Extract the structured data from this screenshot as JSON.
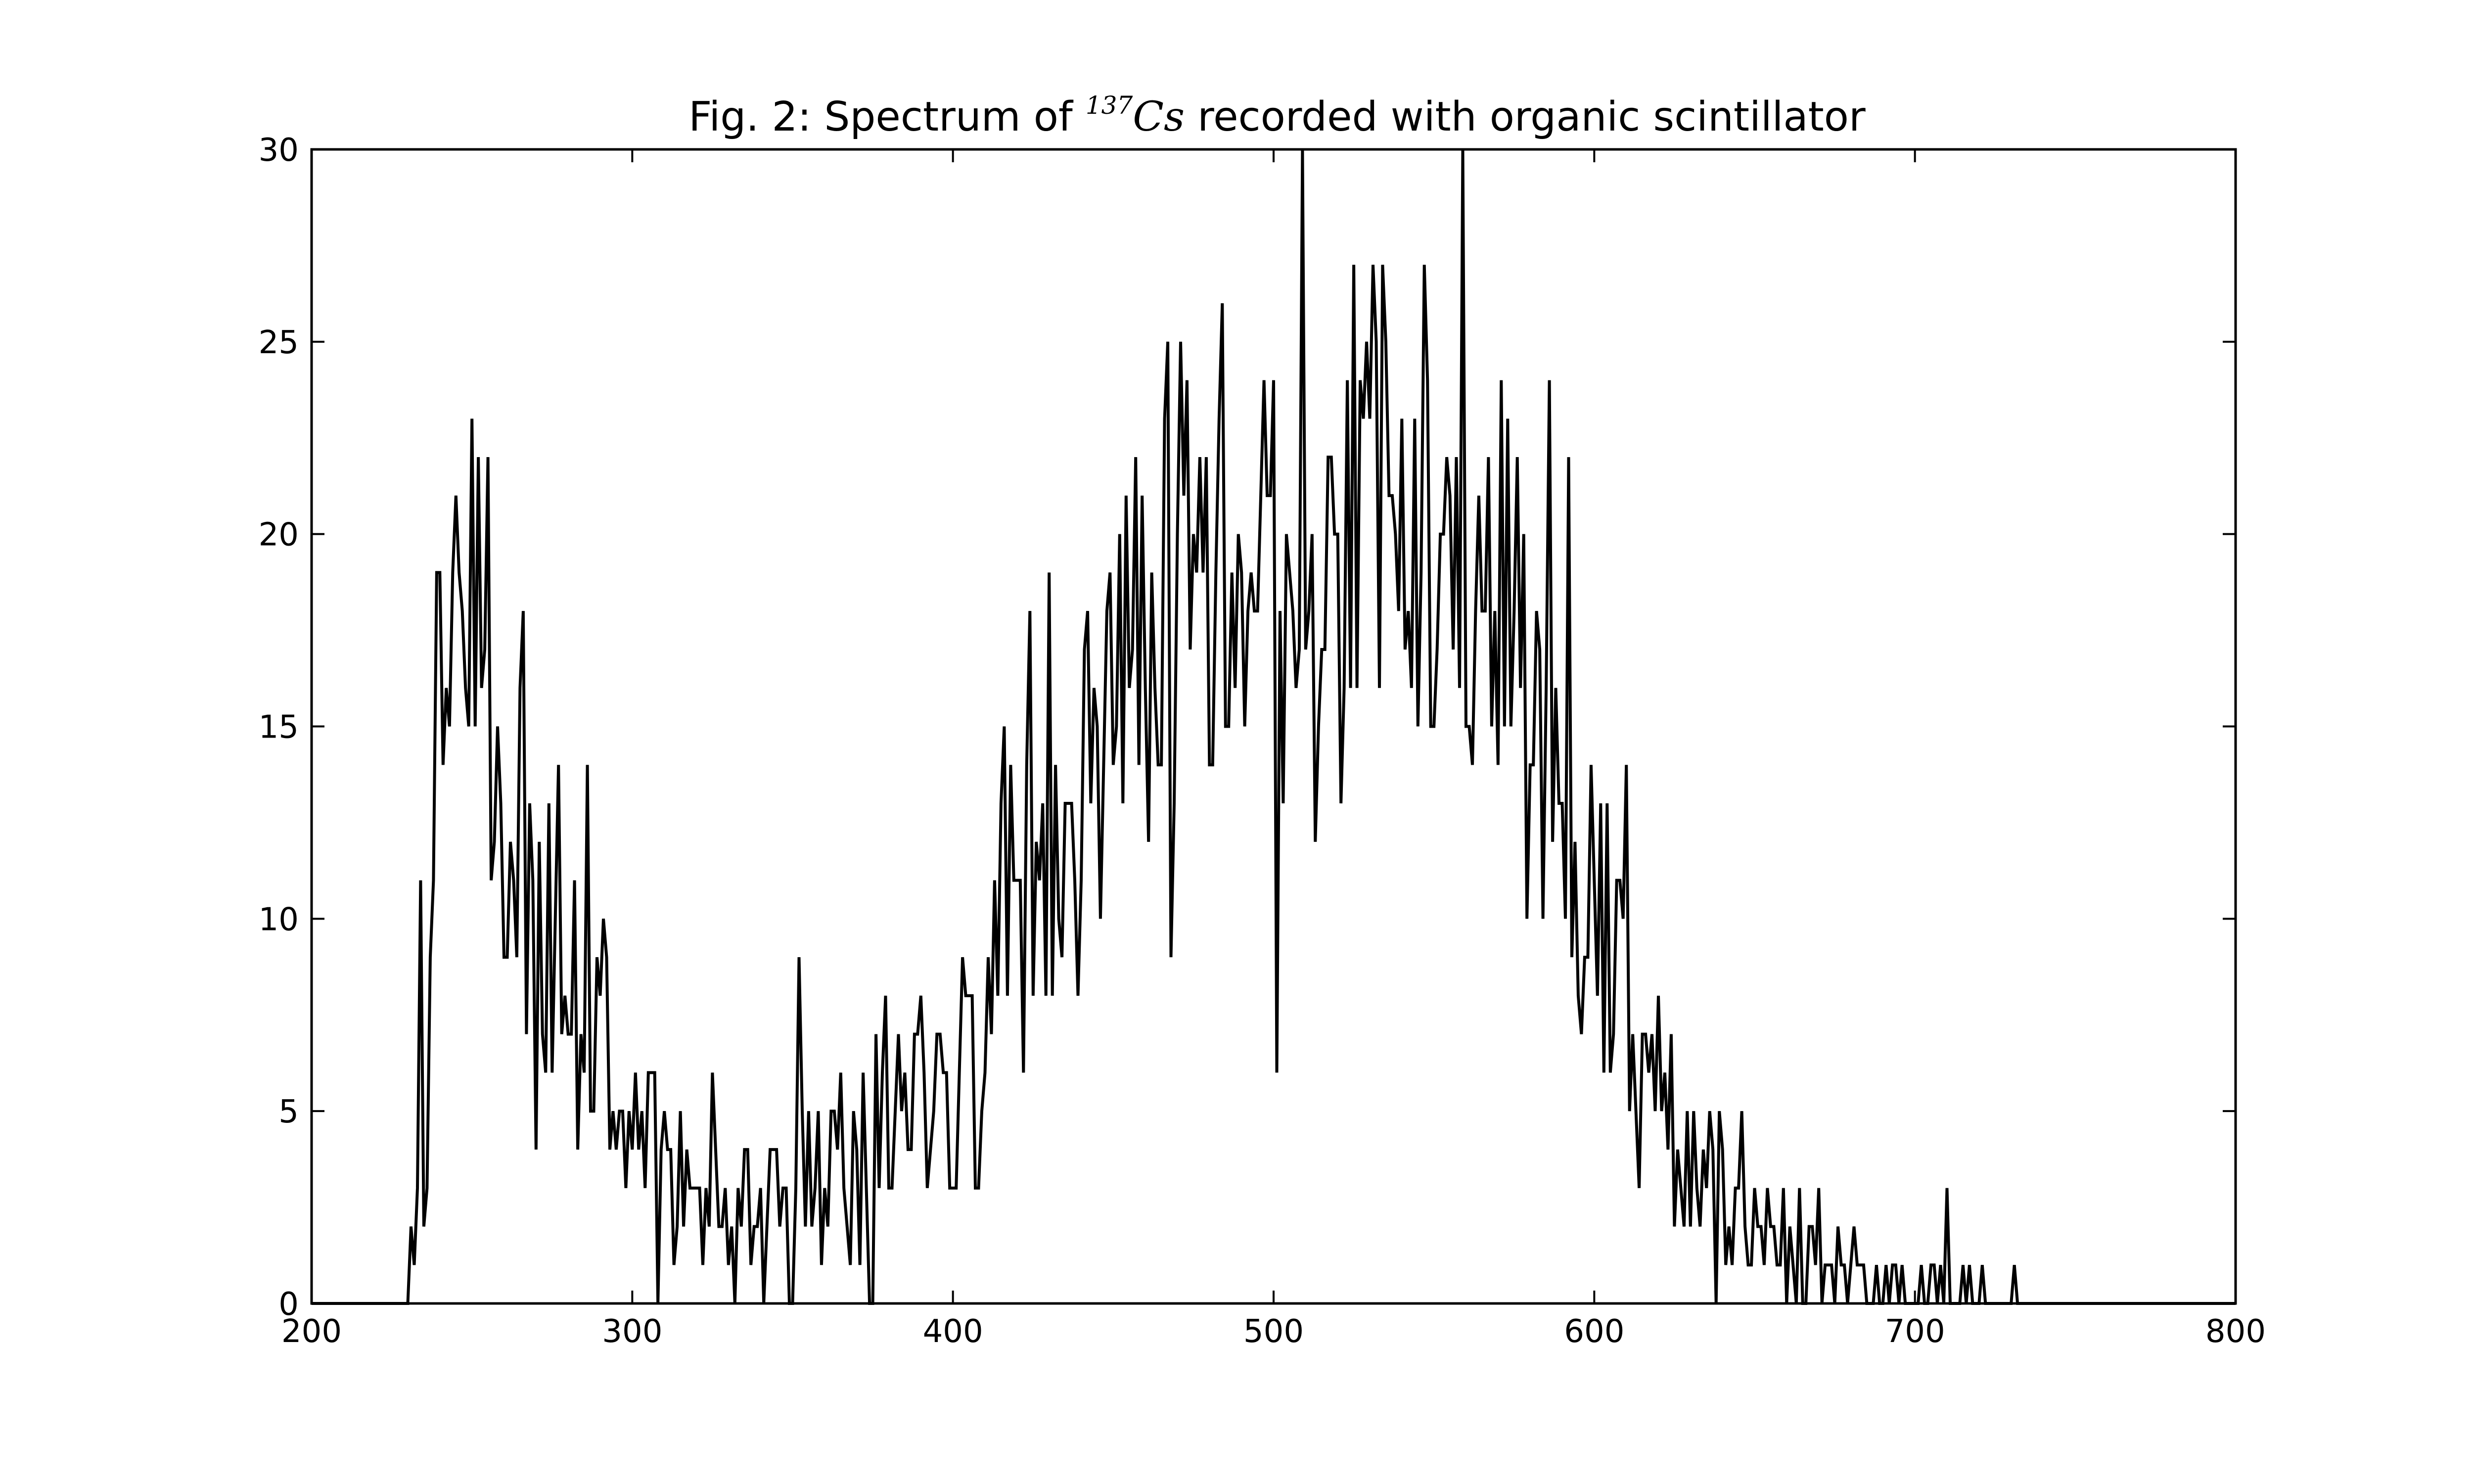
{
  "chart_data": {
    "type": "line",
    "title": {
      "prefix": "Fig. 2: Spectrum of ",
      "isotope_mass": "137",
      "isotope_symbol": "Cs",
      "suffix": " recorded with organic scintillator"
    },
    "xlabel": "",
    "ylabel": "",
    "xlim": [
      200,
      800
    ],
    "ylim": [
      0,
      30
    ],
    "xticks": [
      200,
      300,
      400,
      500,
      600,
      700,
      800
    ],
    "yticks": [
      0,
      5,
      10,
      15,
      20,
      25,
      30
    ],
    "xtick_labels": [
      "200",
      "300",
      "400",
      "500",
      "600",
      "700",
      "800"
    ],
    "ytick_labels": [
      "0",
      "5",
      "10",
      "15",
      "20",
      "25",
      "30"
    ],
    "grid": false,
    "line_color": "#000000",
    "series": [
      {
        "x_start": 200,
        "x_step": 1,
        "values": [
          0,
          0,
          0,
          0,
          0,
          0,
          0,
          0,
          0,
          0,
          0,
          0,
          0,
          0,
          0,
          0,
          0,
          0,
          0,
          0,
          0,
          0,
          0,
          0,
          0,
          0,
          0,
          0,
          0,
          0,
          0,
          2,
          1,
          3,
          11,
          2,
          3,
          9,
          11,
          19,
          19,
          14,
          16,
          15,
          19,
          21,
          19,
          18,
          16,
          15,
          23,
          15,
          22,
          16,
          17,
          22,
          11,
          12,
          15,
          13,
          9,
          9,
          12,
          11,
          9,
          16,
          18,
          7,
          13,
          11,
          4,
          12,
          7,
          6,
          13,
          6,
          10,
          14,
          7,
          8,
          7,
          7,
          11,
          4,
          7,
          6,
          14,
          5,
          5,
          9,
          8,
          10,
          9,
          4,
          5,
          4,
          5,
          5,
          3,
          5,
          4,
          6,
          4,
          5,
          3,
          6,
          6,
          6,
          0,
          4,
          5,
          4,
          4,
          1,
          2,
          5,
          2,
          4,
          3,
          3,
          3,
          3,
          1,
          3,
          2,
          6,
          4,
          2,
          2,
          3,
          1,
          2,
          0,
          3,
          2,
          4,
          4,
          1,
          2,
          2,
          3,
          0,
          2,
          4,
          4,
          4,
          2,
          3,
          3,
          0,
          0,
          3,
          9,
          5,
          2,
          5,
          2,
          3,
          5,
          1,
          3,
          2,
          5,
          5,
          4,
          6,
          3,
          2,
          1,
          5,
          4,
          1,
          6,
          3,
          0,
          0,
          7,
          3,
          6,
          8,
          3,
          3,
          5,
          7,
          5,
          6,
          4,
          4,
          7,
          7,
          8,
          6,
          3,
          4,
          5,
          7,
          7,
          6,
          6,
          3,
          3,
          3,
          6,
          9,
          8,
          8,
          8,
          3,
          3,
          5,
          6,
          9,
          7,
          11,
          8,
          13,
          15,
          8,
          14,
          11,
          11,
          11,
          6,
          14,
          18,
          8,
          12,
          11,
          13,
          8,
          19,
          8,
          14,
          10,
          9,
          13,
          13,
          13,
          11,
          8,
          11,
          17,
          18,
          13,
          16,
          15,
          10,
          14,
          18,
          19,
          14,
          15,
          20,
          13,
          21,
          16,
          17,
          22,
          14,
          21,
          16,
          12,
          19,
          16,
          14,
          14,
          23,
          25,
          9,
          13,
          20,
          25,
          21,
          24,
          17,
          20,
          19,
          22,
          19,
          22,
          14,
          14,
          19,
          23,
          26,
          15,
          15,
          19,
          16,
          20,
          19,
          15,
          18,
          19,
          18,
          18,
          21,
          24,
          21,
          21,
          24,
          6,
          18,
          13,
          20,
          19,
          18,
          16,
          17,
          30,
          17,
          18,
          20,
          12,
          15,
          17,
          17,
          22,
          22,
          20,
          20,
          13,
          16,
          24,
          16,
          27,
          16,
          24,
          23,
          25,
          23,
          27,
          25,
          16,
          27,
          25,
          21,
          21,
          20,
          18,
          23,
          17,
          18,
          16,
          23,
          15,
          19,
          27,
          24,
          15,
          15,
          17,
          20,
          20,
          22,
          21,
          17,
          22,
          16,
          30,
          15,
          15,
          14,
          18,
          21,
          18,
          18,
          22,
          15,
          18,
          14,
          24,
          15,
          23,
          15,
          18,
          22,
          16,
          20,
          10,
          14,
          14,
          18,
          17,
          10,
          16,
          24,
          12,
          16,
          13,
          13,
          10,
          22,
          9,
          12,
          8,
          7,
          9,
          9,
          14,
          11,
          8,
          13,
          6,
          13,
          6,
          7,
          11,
          11,
          10,
          14,
          5,
          7,
          5,
          3,
          7,
          7,
          6,
          7,
          5,
          8,
          5,
          6,
          4,
          7,
          2,
          4,
          3,
          2,
          5,
          2,
          5,
          3,
          2,
          4,
          3,
          5,
          4,
          0,
          5,
          4,
          1,
          2,
          1,
          3,
          3,
          5,
          2,
          1,
          1,
          3,
          2,
          2,
          1,
          3,
          2,
          2,
          1,
          1,
          3,
          0,
          2,
          1,
          0,
          3,
          0,
          0,
          2,
          2,
          1,
          3,
          0,
          1,
          1,
          1,
          0,
          2,
          1,
          1,
          0,
          1,
          2,
          1,
          1,
          1,
          0,
          0,
          0,
          1,
          0,
          0,
          1,
          0,
          1,
          1,
          0,
          1,
          0,
          0,
          0,
          0,
          0,
          1,
          0,
          0,
          1,
          1,
          0,
          1,
          0,
          3,
          0,
          0,
          0,
          0,
          1,
          0,
          1,
          0,
          0,
          0,
          1,
          0,
          0,
          0,
          0,
          0,
          0,
          0,
          0,
          0,
          1,
          0,
          0,
          0,
          0,
          0,
          0,
          0,
          0,
          0,
          0,
          0,
          0,
          0,
          0,
          0,
          0,
          0,
          0,
          0,
          0,
          0,
          0,
          0,
          0,
          0,
          0,
          0,
          0,
          0,
          0,
          0,
          0,
          0,
          0,
          0,
          0,
          0,
          0,
          0,
          0,
          0,
          0,
          0,
          0,
          0,
          0,
          0,
          0,
          0,
          0,
          0,
          0,
          0,
          0,
          0,
          0,
          0,
          0,
          0,
          0,
          0,
          0,
          0,
          0,
          0,
          0,
          0,
          0,
          0
        ]
      }
    ]
  }
}
